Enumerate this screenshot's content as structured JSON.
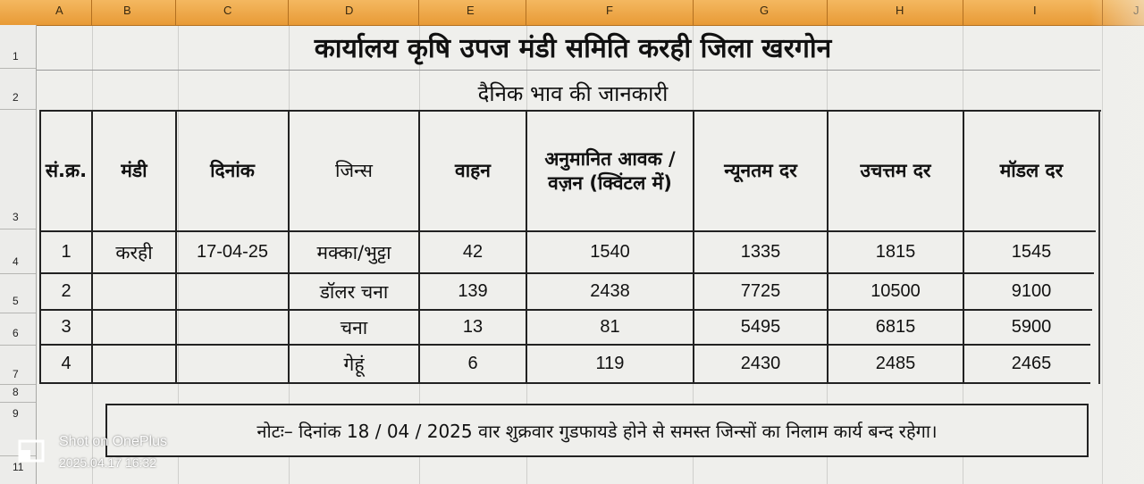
{
  "columns": [
    "A",
    "B",
    "C",
    "D",
    "E",
    "F",
    "G",
    "H",
    "I",
    "J"
  ],
  "rows": [
    "1",
    "2",
    "3",
    "4",
    "5",
    "6",
    "7",
    "8",
    "9",
    "11"
  ],
  "title": "कार्यालय कृषि उपज मंडी समिति करही जिला खरगोन",
  "subtitle": "दैनिक भाव की जानकारी",
  "headers": {
    "sno": "सं.क्र.",
    "mandi": "मंडी",
    "date": "दिनांक",
    "commodity": "जिन्स",
    "vehicle": "वाहन",
    "arrival": "अनुमानित आवक / वज़न (क्विंटल में)",
    "min_rate": "न्यूनतम दर",
    "max_rate": "उचत्तम दर",
    "modal_rate": "मॉडल दर"
  },
  "table_rows": [
    {
      "sno": "1",
      "mandi": "करही",
      "date": "17-04-25",
      "commodity": "मक्का/भुट्टा",
      "vehicle": "42",
      "arrival": "1540",
      "min": "1335",
      "max": "1815",
      "modal": "1545"
    },
    {
      "sno": "2",
      "mandi": "",
      "date": "",
      "commodity": "डॉलर चना",
      "vehicle": "139",
      "arrival": "2438",
      "min": "7725",
      "max": "10500",
      "modal": "9100"
    },
    {
      "sno": "3",
      "mandi": "",
      "date": "",
      "commodity": "चना",
      "vehicle": "13",
      "arrival": "81",
      "min": "5495",
      "max": "6815",
      "modal": "5900"
    },
    {
      "sno": "4",
      "mandi": "",
      "date": "",
      "commodity": "गेहूं",
      "vehicle": "6",
      "arrival": "119",
      "min": "2430",
      "max": "2485",
      "modal": "2465"
    }
  ],
  "note": "नोटः– दिनांक 18 / 04 / 2025 वार शुक्रवार गुडफायडे होने से समस्त जिन्सों का निलाम कार्य बन्द रहेगा।",
  "watermark": {
    "shot_on": "Shot on OnePlus",
    "timestamp": "2025.04.17 16:32"
  },
  "colors": {
    "header_bar": "#e89a36",
    "sheet_bg": "#efefec",
    "border": "#222222"
  }
}
